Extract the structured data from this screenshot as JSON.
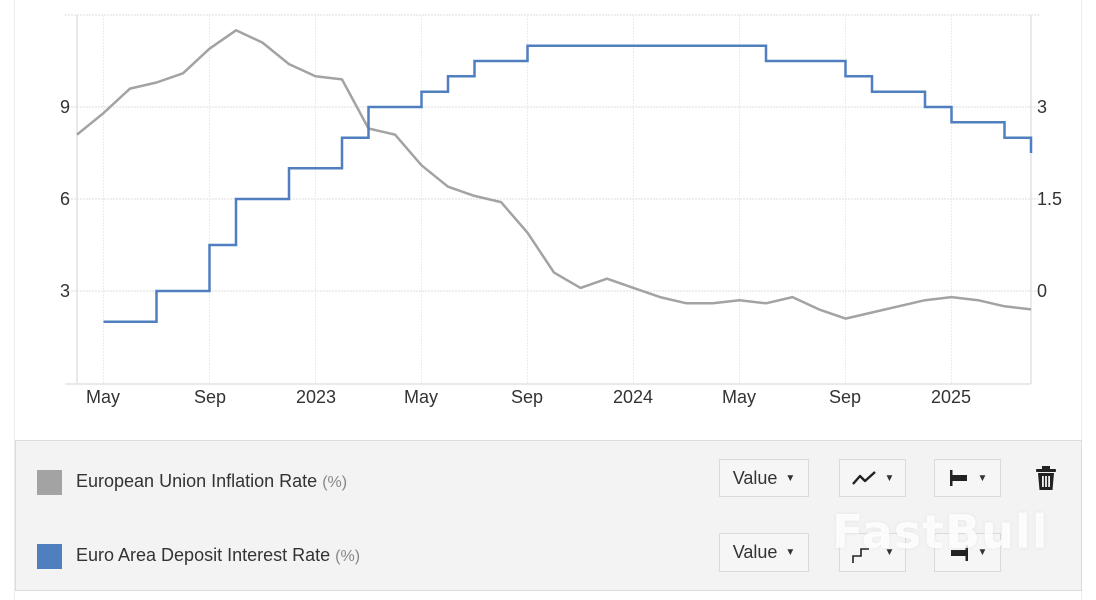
{
  "chart_data": {
    "type": "line",
    "title": "",
    "x": [
      "2022-04",
      "2022-05",
      "2022-06",
      "2022-07",
      "2022-08",
      "2022-09",
      "2022-10",
      "2022-11",
      "2022-12",
      "2023-01",
      "2023-02",
      "2023-03",
      "2023-04",
      "2023-05",
      "2023-06",
      "2023-07",
      "2023-08",
      "2023-09",
      "2023-10",
      "2023-11",
      "2023-12",
      "2024-01",
      "2024-02",
      "2024-03",
      "2024-04",
      "2024-05",
      "2024-06",
      "2024-07",
      "2024-08",
      "2024-09",
      "2024-10",
      "2024-11",
      "2024-12",
      "2025-01",
      "2025-02",
      "2025-03",
      "2025-04"
    ],
    "x_tick_labels": [
      "May",
      "Sep",
      "2023",
      "May",
      "Sep",
      "2024",
      "May",
      "Sep",
      "2025"
    ],
    "x_tick_positions": [
      "2022-05",
      "2022-09",
      "2023-01",
      "2023-05",
      "2023-09",
      "2024-01",
      "2024-05",
      "2024-09",
      "2025-01"
    ],
    "series": [
      {
        "name": "European Union Inflation Rate",
        "unit": "%",
        "axis": "left",
        "style": "line",
        "color": "#a3a3a3",
        "values": [
          8.1,
          8.8,
          9.6,
          9.8,
          10.1,
          10.9,
          11.5,
          11.1,
          10.4,
          10.0,
          9.9,
          8.3,
          8.1,
          7.1,
          6.4,
          6.1,
          5.9,
          4.9,
          3.6,
          3.1,
          3.4,
          3.1,
          2.8,
          2.6,
          2.6,
          2.7,
          2.6,
          2.8,
          2.4,
          2.1,
          2.3,
          2.5,
          2.7,
          2.8,
          2.7,
          2.5,
          2.4
        ]
      },
      {
        "name": "Euro Area Deposit Interest Rate",
        "unit": "%",
        "axis": "right",
        "style": "step",
        "color": "#4f7fbf",
        "values": [
          null,
          -0.5,
          -0.5,
          0.0,
          0.0,
          0.75,
          1.5,
          1.5,
          2.0,
          2.0,
          2.5,
          3.0,
          3.0,
          3.25,
          3.5,
          3.75,
          3.75,
          4.0,
          4.0,
          4.0,
          4.0,
          4.0,
          4.0,
          4.0,
          4.0,
          4.0,
          3.75,
          3.75,
          3.75,
          3.5,
          3.25,
          3.25,
          3.0,
          2.75,
          2.75,
          2.5,
          2.25
        ]
      }
    ],
    "y_left": {
      "ticks": [
        3,
        6,
        9
      ],
      "range": [
        -0.1,
        12
      ]
    },
    "y_right": {
      "ticks": [
        0,
        1.5,
        3
      ],
      "range": [
        -1.5,
        4.5
      ]
    },
    "xlabel": "",
    "ylabel": "",
    "grid": true,
    "legend_position": "bottom"
  },
  "axes": {
    "left_ticks": [
      "9",
      "6",
      "3"
    ],
    "right_ticks": [
      "3",
      "1.5",
      "0"
    ],
    "x_ticks": [
      "May",
      "Sep",
      "2023",
      "May",
      "Sep",
      "2024",
      "May",
      "Sep",
      "2025"
    ]
  },
  "legend": {
    "items": [
      {
        "label": "European Union Inflation Rate",
        "unit": "(%)",
        "color": "#a3a3a3",
        "value_button": "Value",
        "chart_type_icon": "line-chart-icon",
        "axis_icon": "left-axis-icon"
      },
      {
        "label": "Euro Area Deposit Interest Rate",
        "unit": "(%)",
        "color": "#4f7fbf",
        "value_button": "Value",
        "chart_type_icon": "step-chart-icon",
        "axis_icon": "right-axis-icon"
      }
    ],
    "delete_icon": "trash-icon"
  },
  "watermark": "FastBull"
}
